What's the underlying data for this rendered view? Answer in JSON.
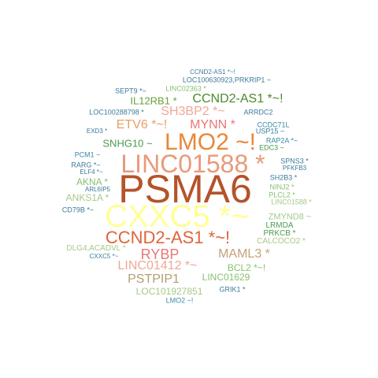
{
  "words": [
    {
      "text": "PSMA6",
      "color": "#b5532a"
    },
    {
      "text": "CXXC5 *~",
      "color": "#ffff99"
    },
    {
      "text": "LINC01588 *",
      "color": "#e89a7a"
    },
    {
      "text": "LMO2 ~!",
      "color": "#e8873a"
    },
    {
      "text": "CCND2-AS1 *~!",
      "color": "#e0643a"
    },
    {
      "text": "RYBP",
      "color": "#e87878"
    },
    {
      "text": "MAML3 *",
      "color": "#c8a078"
    },
    {
      "text": "LINC01412 *~",
      "color": "#f0a898"
    },
    {
      "text": "PSTPIP1",
      "color": "#b0a070"
    },
    {
      "text": "LINC01629",
      "color": "#88c070"
    },
    {
      "text": "LOC101927851",
      "color": "#a8c888"
    },
    {
      "text": "BCL2 *~!",
      "color": "#88c070"
    },
    {
      "text": "SH3BP2 *~",
      "color": "#f0a898"
    },
    {
      "text": "MYNN *",
      "color": "#e87878"
    },
    {
      "text": "ETV6 *~!",
      "color": "#e8a068"
    },
    {
      "text": "CCND2-AS1 *~!",
      "color": "#4a8a2a"
    },
    {
      "text": "IL12RB1 *",
      "color": "#6aa040"
    },
    {
      "text": "SNHG10 ~",
      "color": "#4a9a50"
    },
    {
      "text": "AKNA *",
      "color": "#88c070"
    },
    {
      "text": "ANKS1A *",
      "color": "#a8c888"
    },
    {
      "text": "ZMYND8 ~",
      "color": "#a8c888"
    },
    {
      "text": "LRMDA",
      "color": "#4a9a50"
    },
    {
      "text": "PRKCB *",
      "color": "#4a9a50"
    },
    {
      "text": "CALCOCO2 *",
      "color": "#a8c888"
    },
    {
      "text": "DLG4,ACADVL *",
      "color": "#a8c888"
    },
    {
      "text": "CXXC5 *~",
      "color": "#3a7a9a"
    },
    {
      "text": "LMO2 ~!",
      "color": "#3a8aa8"
    },
    {
      "text": "GRIK1 *",
      "color": "#3a7a9a"
    },
    {
      "text": "CCND2-AS1 *~!",
      "color": "#3a7a9a"
    },
    {
      "text": "LOC100630923,PRKRIP1 ~",
      "color": "#3a7a9a"
    },
    {
      "text": "SEPT9 *~",
      "color": "#3a7a9a"
    },
    {
      "text": "LINC02363 *",
      "color": "#88c070"
    },
    {
      "text": "LOC100288798 *",
      "color": "#3a7a9a"
    },
    {
      "text": "ARRDC2",
      "color": "#3a7a9a"
    },
    {
      "text": "CCDC71L",
      "color": "#3a8aa8"
    },
    {
      "text": "USP15 ~",
      "color": "#3a7a9a"
    },
    {
      "text": "RAP2A *~",
      "color": "#3a8aa8"
    },
    {
      "text": "EDC3 ~",
      "color": "#4a9a50"
    },
    {
      "text": "EXD3 *",
      "color": "#3a7a9a"
    },
    {
      "text": "PCM1 ~",
      "color": "#3a8aa8"
    },
    {
      "text": "RARG *~",
      "color": "#3a7a9a"
    },
    {
      "text": "ELF4 *~",
      "color": "#3a7a9a"
    },
    {
      "text": "ARL6IP5",
      "color": "#3a7a9a"
    },
    {
      "text": "CD79B *~",
      "color": "#3a7a9a"
    },
    {
      "text": "SPNS3 *",
      "color": "#3a7a9a"
    },
    {
      "text": "PFKFB3",
      "color": "#3a7a9a"
    },
    {
      "text": "SH2B3 *",
      "color": "#3a7a9a"
    },
    {
      "text": "NINJ2 *",
      "color": "#88c070"
    },
    {
      "text": "PLCL2 *",
      "color": "#88c070"
    },
    {
      "text": "LINC01588 *",
      "color": "#a8c888"
    }
  ]
}
